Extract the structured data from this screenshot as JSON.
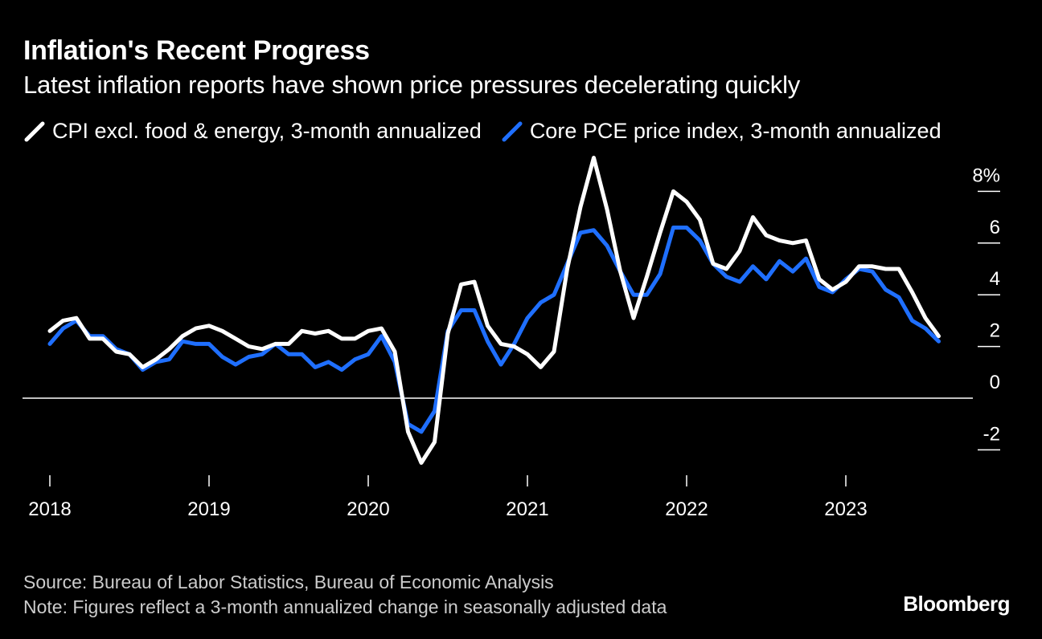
{
  "header": {
    "title": "Inflation's Recent Progress",
    "subtitle": "Latest inflation reports have shown price pressures decelerating quickly"
  },
  "footer": {
    "source": "Source: Bureau of Labor Statistics, Bureau of Economic Analysis",
    "note": "Note: Figures reflect a 3-month annualized change in seasonally adjusted data",
    "logo": "Bloomberg"
  },
  "colors": {
    "background": "#000000",
    "cpi": "#ffffff",
    "pce": "#1f6fff",
    "zero_line": "#ffffff"
  },
  "chart_data": {
    "type": "line",
    "title": "Inflation's Recent Progress",
    "subtitle": "Latest inflation reports have shown price pressures decelerating quickly",
    "x_start": "2018-01",
    "x_step": "month",
    "xlim": [
      "2018-01",
      "2023-09"
    ],
    "ylim": [
      -3,
      8.5
    ],
    "y_ticks": [
      -2,
      0,
      2,
      4,
      6,
      8
    ],
    "y_tick_labels": [
      "-2",
      "0",
      "2",
      "4",
      "6",
      "8%"
    ],
    "x_ticks": [
      "2018",
      "2019",
      "2020",
      "2021",
      "2022",
      "2023"
    ],
    "grid": false,
    "legend": "top-left",
    "series": [
      {
        "name": "CPI excl. food & energy, 3-month annualized",
        "values": [
          2.6,
          3.0,
          3.1,
          2.3,
          2.3,
          1.8,
          1.7,
          1.2,
          1.5,
          1.9,
          2.4,
          2.7,
          2.8,
          2.6,
          2.3,
          2.0,
          1.9,
          2.1,
          2.1,
          2.6,
          2.5,
          2.6,
          2.3,
          2.3,
          2.6,
          2.7,
          1.8,
          -1.3,
          -2.5,
          -1.7,
          2.5,
          4.4,
          4.5,
          2.8,
          2.1,
          2.0,
          1.7,
          1.2,
          1.8,
          5.0,
          7.4,
          9.3,
          7.3,
          4.9,
          3.1,
          4.7,
          6.4,
          8.0,
          7.6,
          6.9,
          5.2,
          5.0,
          5.7,
          7.0,
          6.3,
          6.1,
          6.0,
          6.1,
          4.6,
          4.2,
          4.5,
          5.1,
          5.1,
          5.0,
          5.0,
          4.1,
          3.1,
          2.4
        ],
        "color": "#ffffff"
      },
      {
        "name": "Core PCE price index, 3-month annualized",
        "values": [
          2.1,
          2.7,
          3.0,
          2.4,
          2.4,
          1.9,
          1.7,
          1.1,
          1.4,
          1.5,
          2.2,
          2.1,
          2.1,
          1.6,
          1.3,
          1.6,
          1.7,
          2.1,
          1.7,
          1.7,
          1.2,
          1.4,
          1.1,
          1.5,
          1.7,
          2.4,
          1.4,
          -1.0,
          -1.3,
          -0.5,
          2.6,
          3.4,
          3.4,
          2.2,
          1.3,
          2.1,
          3.1,
          3.7,
          4.0,
          5.2,
          6.4,
          6.5,
          5.9,
          4.9,
          4.0,
          4.0,
          4.8,
          6.6,
          6.6,
          6.1,
          5.2,
          4.7,
          4.5,
          5.1,
          4.6,
          5.3,
          4.9,
          5.4,
          4.3,
          4.1,
          4.6,
          5.0,
          4.9,
          4.2,
          3.9,
          3.0,
          2.7,
          2.2
        ],
        "color": "#1f6fff"
      }
    ]
  }
}
